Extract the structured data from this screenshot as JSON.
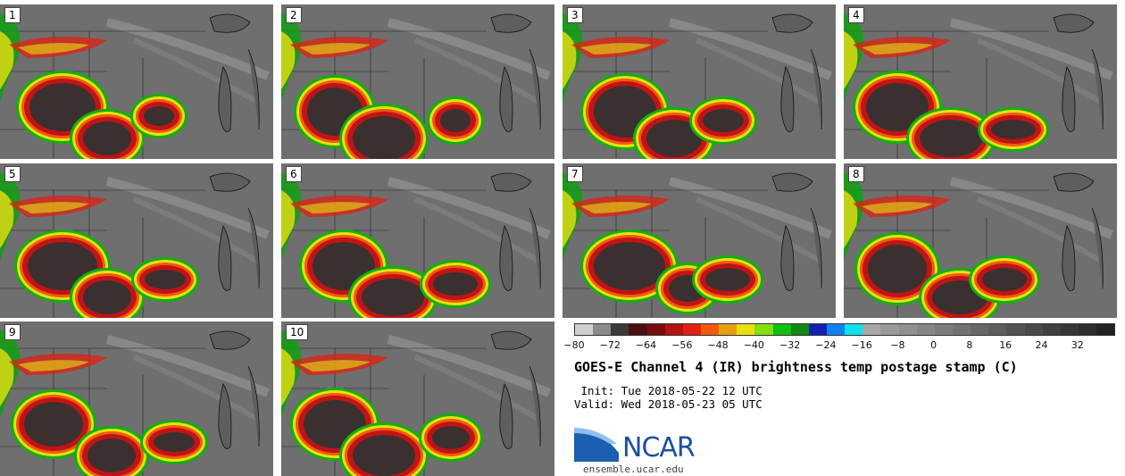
{
  "panels": [
    {
      "label": "1"
    },
    {
      "label": "2"
    },
    {
      "label": "3"
    },
    {
      "label": "4"
    },
    {
      "label": "5"
    },
    {
      "label": "6"
    },
    {
      "label": "7"
    },
    {
      "label": "8"
    },
    {
      "label": "9"
    },
    {
      "label": "10"
    }
  ],
  "colorbar": {
    "colors": [
      "#d0d0d0",
      "#8a8a8a",
      "#3a3a3a",
      "#4a1010",
      "#7a0c0c",
      "#b01414",
      "#e02010",
      "#f05a10",
      "#e8a010",
      "#e8e010",
      "#80e010",
      "#10c010",
      "#108a10",
      "#1020b0",
      "#1080f0",
      "#10e0f0",
      "#a8a8a8",
      "#9a9a9a",
      "#909090",
      "#868686",
      "#7c7c7c",
      "#727272",
      "#686868",
      "#5e5e5e",
      "#545454",
      "#4a4a4a",
      "#404040",
      "#363636",
      "#2c2c2c",
      "#222222"
    ],
    "tick_labels": [
      "−80",
      "−72",
      "−64",
      "−56",
      "−48",
      "−40",
      "−32",
      "−24",
      "−16",
      "−8",
      "0",
      "8",
      "16",
      "24",
      "32"
    ]
  },
  "title": "GOES-E Channel 4 (IR) brightness temp postage stamp (C)",
  "init": " Init: Tue 2018-05-22 12 UTC",
  "valid": "Valid: Wed 2018-05-23 05 UTC",
  "logo": {
    "text": "NCAR"
  },
  "site": "ensemble.ucar.edu"
}
